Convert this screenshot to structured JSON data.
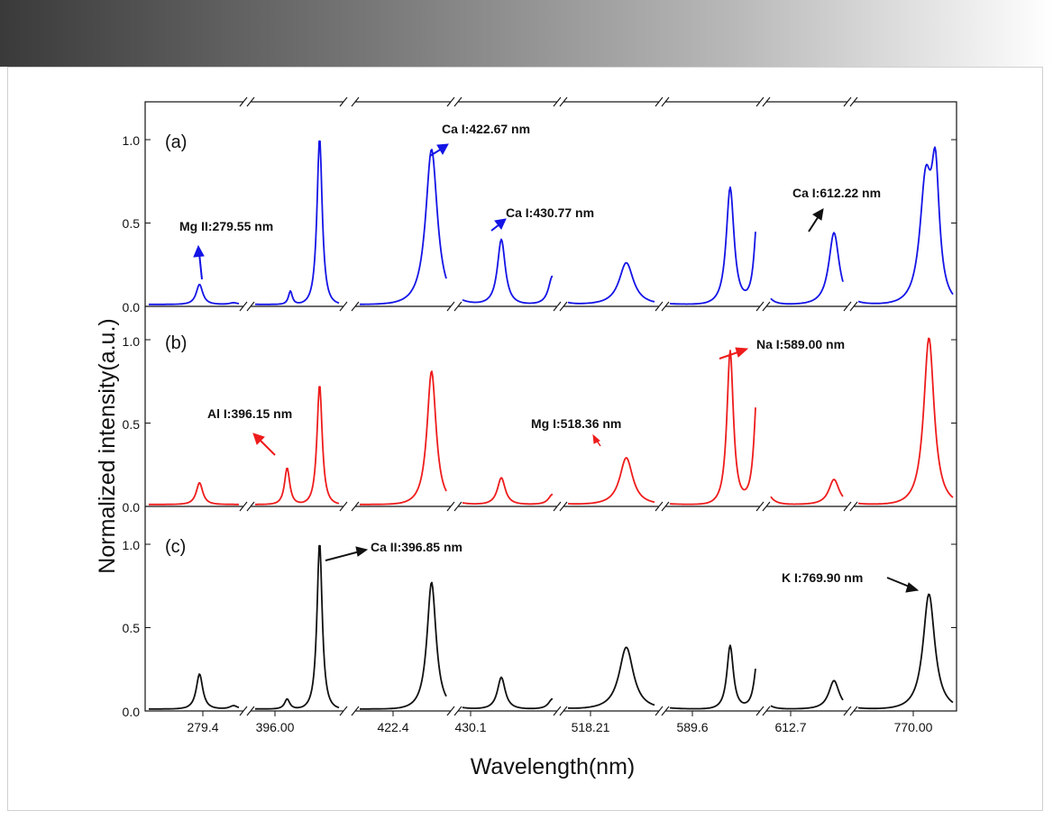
{
  "chart_data": {
    "type": "line",
    "ylabel": "Normalized intensity(a.u.)",
    "xlabel": "Wavelength(nm)",
    "x_ticks": [
      "279.4",
      "396.00",
      "422.4",
      "430.1",
      "518.21",
      "589.6",
      "612.7",
      "770.00"
    ],
    "y_ticks": [
      "0.0",
      "0.5",
      "1.0"
    ],
    "ylim": [
      0,
      1.25
    ],
    "grid": false,
    "colors": {
      "a": "#1414e6",
      "b": "#ee1c1c",
      "c": "#111111"
    },
    "panels": [
      {
        "label": "(a)",
        "color": "#1414e6",
        "peaks": [
          [
            0.067,
            0.12,
            5
          ],
          [
            0.109,
            0.01,
            6
          ],
          [
            0.179,
            0.08,
            3
          ],
          [
            0.215,
            1.0,
            4
          ],
          [
            0.353,
            0.93,
            9
          ],
          [
            0.439,
            0.39,
            6
          ],
          [
            0.502,
            0.17,
            6
          ],
          [
            0.593,
            0.25,
            11
          ],
          [
            0.721,
            0.7,
            6
          ],
          [
            0.755,
            0.57,
            5
          ],
          [
            0.849,
            0.43,
            8
          ],
          [
            0.962,
            0.71,
            9
          ],
          [
            0.974,
            0.7,
            6
          ]
        ],
        "annotations": [
          {
            "text": "Mg II:279.55 nm",
            "color": "#1414e6"
          },
          {
            "text": "Ca I:422.67 nm",
            "color": "#1414e6"
          },
          {
            "text": "Ca I:430.77 nm",
            "color": "#1414e6"
          },
          {
            "text": "Ca I:612.22 nm",
            "color": "#111111"
          }
        ]
      },
      {
        "label": "(b)",
        "color": "#ee1c1c",
        "peaks": [
          [
            0.067,
            0.13,
            5
          ],
          [
            0.175,
            0.22,
            4
          ],
          [
            0.215,
            0.72,
            4
          ],
          [
            0.353,
            0.8,
            7
          ],
          [
            0.439,
            0.16,
            6
          ],
          [
            0.502,
            0.06,
            6
          ],
          [
            0.593,
            0.28,
            10
          ],
          [
            0.721,
            0.92,
            5
          ],
          [
            0.755,
            0.77,
            5
          ],
          [
            0.849,
            0.15,
            8
          ],
          [
            0.966,
            1.0,
            8
          ]
        ],
        "annotations": [
          {
            "text": "Al I:396.15 nm",
            "color": "#111111"
          },
          {
            "text": "Mg I:518.36 nm",
            "color": "#111111"
          },
          {
            "text": "Na I:589.00 nm",
            "color": "#111111"
          }
        ]
      },
      {
        "label": "(c)",
        "color": "#111111",
        "peaks": [
          [
            0.067,
            0.21,
            5
          ],
          [
            0.109,
            0.02,
            6
          ],
          [
            0.175,
            0.06,
            4
          ],
          [
            0.215,
            1.0,
            4
          ],
          [
            0.353,
            0.76,
            7
          ],
          [
            0.439,
            0.19,
            6
          ],
          [
            0.502,
            0.06,
            6
          ],
          [
            0.593,
            0.37,
            11
          ],
          [
            0.721,
            0.38,
            5
          ],
          [
            0.755,
            0.32,
            5
          ],
          [
            0.849,
            0.17,
            8
          ],
          [
            0.966,
            0.69,
            9
          ]
        ],
        "annotations": [
          {
            "text": "Ca II:396.85 nm",
            "color": "#111111"
          },
          {
            "text": "K I:769.90 nm",
            "color": "#111111"
          }
        ]
      }
    ]
  }
}
